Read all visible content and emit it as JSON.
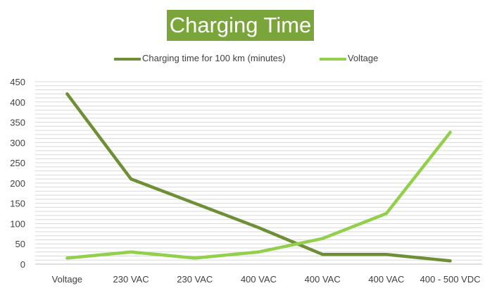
{
  "chart_data": {
    "type": "line",
    "title": "Charging Time",
    "categories": [
      "Voltage",
      "230 VAC",
      "230 VAC",
      "400 VAC",
      "400 VAC",
      "400 VAC",
      "400 - 500 VDC"
    ],
    "series": [
      {
        "name": "Charging time for 100 km (minutes)",
        "color": "#6f8f37",
        "values": [
          420,
          210,
          150,
          90,
          24,
          24,
          8
        ]
      },
      {
        "name": "Voltage",
        "color": "#92cf4a",
        "values": [
          15,
          30,
          15,
          30,
          63,
          125,
          325
        ]
      }
    ],
    "yticks": [
      0,
      50,
      100,
      150,
      200,
      250,
      300,
      350,
      400,
      450
    ],
    "ylim": [
      0,
      450
    ],
    "grid": true,
    "legend_position": "top"
  }
}
